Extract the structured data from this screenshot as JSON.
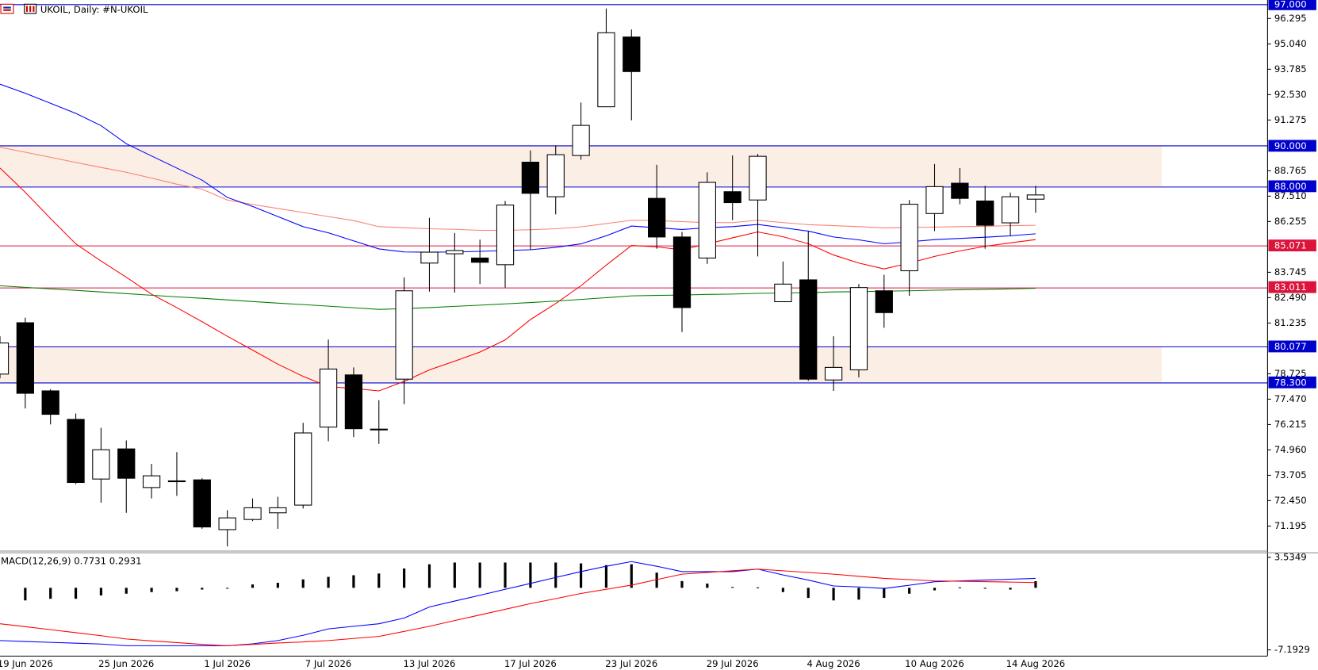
{
  "chart_data": [
    {
      "type": "candlestick",
      "title": "UKOIL, Daily:  #N-UKOIL",
      "categories": [
        null,
        "19 Jun 2026",
        null,
        null,
        null,
        "25 Jun 2026",
        null,
        null,
        null,
        "1 Jul 2026",
        null,
        null,
        null,
        "7 Jul 2026",
        null,
        null,
        null,
        "13 Jul 2026",
        null,
        null,
        null,
        "17 Jul 2026",
        null,
        null,
        null,
        "23 Jul 2026",
        null,
        null,
        null,
        "29 Jul 2026",
        null,
        null,
        null,
        "4 Aug 2026",
        null,
        null,
        null,
        "10 Aug 2026",
        null,
        null,
        null,
        "14 Aug 2026"
      ],
      "open": [
        78.71,
        81.25,
        77.88,
        76.47,
        73.52,
        75.01,
        73.1,
        73.43,
        73.48,
        71.02,
        71.52,
        71.85,
        72.23,
        76.09,
        78.67,
        75.99,
        78.46,
        84.2,
        84.66,
        84.45,
        84.12,
        89.19,
        87.48,
        89.52,
        91.93,
        95.38,
        87.4,
        85.49,
        84.45,
        87.73,
        87.32,
        82.29,
        83.37,
        78.42,
        78.92,
        82.83,
        83.82,
        86.65,
        88.15,
        87.27,
        86.19,
        87.36
      ],
      "high": [
        80.58,
        81.5,
        77.96,
        76.76,
        76.05,
        75.43,
        74.27,
        74.85,
        73.56,
        71.98,
        72.56,
        72.64,
        76.3,
        80.42,
        79.04,
        77.42,
        83.49,
        86.44,
        85.69,
        85.36,
        87.27,
        89.77,
        90.02,
        92.14,
        96.79,
        95.75,
        89.06,
        85.74,
        88.69,
        89.52,
        89.6,
        84.28,
        85.78,
        80.58,
        83.16,
        83.62,
        87.32,
        89.1,
        88.9,
        88.02,
        87.69,
        88.02
      ],
      "low": [
        78.5,
        77.01,
        76.22,
        73.27,
        72.35,
        71.85,
        72.56,
        72.69,
        71.06,
        70.19,
        71.44,
        71.06,
        72.06,
        75.39,
        75.6,
        75.26,
        77.22,
        82.79,
        82.74,
        83.16,
        82.99,
        84.86,
        86.61,
        89.31,
        91.93,
        91.26,
        84.91,
        80.79,
        84.16,
        86.32,
        84.53,
        82.29,
        78.38,
        77.88,
        78.55,
        81.0,
        82.58,
        85.78,
        87.11,
        84.91,
        85.53,
        86.69
      ],
      "close": [
        80.25,
        77.76,
        76.72,
        73.35,
        74.97,
        73.56,
        73.68,
        73.41,
        71.15,
        71.6,
        72.1,
        72.1,
        75.8,
        78.96,
        76.01,
        75.95,
        82.83,
        84.74,
        84.82,
        84.24,
        87.07,
        87.65,
        89.56,
        91.01,
        95.59,
        93.67,
        85.49,
        82.0,
        88.19,
        87.19,
        89.48,
        83.16,
        78.46,
        79.04,
        82.99,
        81.75,
        87.11,
        87.98,
        87.4,
        86.07,
        87.48,
        87.57
      ],
      "bull_color": "#ffffff",
      "bear_color": "#000000",
      "series": [
        {
          "color": "#fa8072",
          "values": [
            89.93,
            89.68,
            89.43,
            89.18,
            88.93,
            88.69,
            88.4,
            88.1,
            87.85,
            87.32,
            87.1,
            86.9,
            86.7,
            86.5,
            86.3,
            86.0,
            85.95,
            85.9,
            85.87,
            85.82,
            85.82,
            85.85,
            85.9,
            85.99,
            86.15,
            86.32,
            86.3,
            86.25,
            86.2,
            86.2,
            86.32,
            86.2,
            86.1,
            86.05,
            86.0,
            85.94,
            85.96,
            85.98,
            86.0,
            86.02,
            86.05,
            86.07
          ]
        },
        {
          "color": "#0000ff",
          "values": [
            93.05,
            92.6,
            92.1,
            91.6,
            91.0,
            90.1,
            89.5,
            88.9,
            88.3,
            87.45,
            87.0,
            86.5,
            86.0,
            85.7,
            85.3,
            84.9,
            84.75,
            84.74,
            84.75,
            84.78,
            84.82,
            84.86,
            84.98,
            85.15,
            85.55,
            86.03,
            85.95,
            85.86,
            85.95,
            86.0,
            86.11,
            85.95,
            85.78,
            85.49,
            85.35,
            85.16,
            85.25,
            85.36,
            85.42,
            85.48,
            85.55,
            85.65
          ]
        },
        {
          "color": "#ff0000",
          "values": [
            88.9,
            87.7,
            86.4,
            85.15,
            84.3,
            83.5,
            82.66,
            82.0,
            81.3,
            80.58,
            79.9,
            79.2,
            78.6,
            78.09,
            78.0,
            77.88,
            78.35,
            78.92,
            79.35,
            79.8,
            80.4,
            81.41,
            82.2,
            83.08,
            84.1,
            85.07,
            85.0,
            84.86,
            85.15,
            85.45,
            85.74,
            85.5,
            85.16,
            84.6,
            84.2,
            83.91,
            84.2,
            84.53,
            84.8,
            85.03,
            85.2,
            85.36
          ]
        },
        {
          "color": "#008000",
          "values": [
            83.08,
            83.0,
            82.92,
            82.85,
            82.77,
            82.69,
            82.61,
            82.53,
            82.46,
            82.38,
            82.3,
            82.22,
            82.15,
            82.07,
            81.99,
            81.91,
            81.95,
            82.0,
            82.06,
            82.12,
            82.18,
            82.25,
            82.32,
            82.4,
            82.49,
            82.58,
            82.6,
            82.62,
            82.65,
            82.67,
            82.7,
            82.72,
            82.74,
            82.77,
            82.79,
            82.81,
            82.83,
            82.86,
            82.88,
            82.9,
            82.92,
            82.95
          ]
        }
      ],
      "levels": [
        {
          "value": 97,
          "label": "97.000",
          "color": "#0000cd"
        },
        {
          "value": 90,
          "label": "90.000",
          "color": "#0000cd"
        },
        {
          "value": 88,
          "label": "88.000",
          "color": "#0000cd"
        },
        {
          "value": 85.071,
          "label": "85.071",
          "color": "#dc143c"
        },
        {
          "value": 83.011,
          "label": "83.011",
          "color": "#dc143c"
        },
        {
          "value": 80.077,
          "label": "80.077",
          "color": "#0000cd"
        },
        {
          "value": 78.3,
          "label": "78.300",
          "color": "#0000cd"
        }
      ],
      "zones": [
        [
          88,
          90
        ],
        [
          78.3,
          80.077
        ]
      ],
      "zone_color": "#fbeee4",
      "ylim": [
        69.98,
        97.21
      ],
      "yticks": [
        96.295,
        {
          "value": 95.04,
          "label": "95.040"
        },
        93.785,
        {
          "value": 92.53,
          "label": "92.530"
        },
        91.275,
        88.765,
        {
          "value": 87.51,
          "label": "87.510"
        },
        86.255,
        83.745,
        {
          "value": 82.49,
          "label": "82.490"
        },
        81.235,
        78.725,
        {
          "value": 77.47,
          "label": "77.470"
        },
        76.215,
        {
          "value": 74.96,
          "label": "74.960"
        },
        73.705,
        {
          "value": 72.45,
          "label": "72.450"
        },
        71.195
      ]
    },
    {
      "type": "macd",
      "title": "MACD(12,26,9) 0.7731 0.2931",
      "values": [
        null,
        -1.46,
        -1.27,
        -1.27,
        -0.88,
        -0.68,
        -0.49,
        -0.39,
        -0.2,
        -0.05,
        0.39,
        0.58,
        0.98,
        1.27,
        1.46,
        1.66,
        2.24,
        2.73,
        2.93,
        2.93,
        2.93,
        2.93,
        2.93,
        2.83,
        2.63,
        2.73,
        1.76,
        0.78,
        0.49,
        0.1,
        0.05,
        -0.49,
        -1.17,
        -1.46,
        -1.37,
        -1.17,
        -0.68,
        -0.29,
        0.05,
        -0.1,
        -0.2,
        0.77
      ],
      "color": "#000000",
      "series": [
        {
          "color": "#0000ff",
          "values": [
            -6.12,
            -6.22,
            -6.32,
            -6.42,
            -6.52,
            -6.71,
            -6.71,
            -6.71,
            -6.71,
            -6.71,
            -6.5,
            -6.12,
            -5.5,
            -4.76,
            -4.46,
            -4.17,
            -3.5,
            -2.22,
            -1.54,
            -0.86,
            -0.17,
            0.51,
            1.2,
            1.88,
            2.5,
            3.05,
            2.5,
            1.88,
            1.88,
            1.88,
            2.17,
            1.5,
            0.9,
            0.22,
            0.1,
            -0.07,
            0.3,
            0.71,
            0.8,
            0.9,
            1.0,
            1.1
          ]
        },
        {
          "color": "#ff0000",
          "values": [
            -4.17,
            -4.5,
            -4.85,
            -5.2,
            -5.55,
            -5.93,
            -6.15,
            -6.35,
            -6.55,
            -6.71,
            -6.55,
            -6.4,
            -6.27,
            -6.12,
            -5.87,
            -5.63,
            -5.05,
            -4.46,
            -3.8,
            -3.14,
            -2.49,
            -1.83,
            -1.25,
            -0.66,
            -0.17,
            0.32,
            0.95,
            1.58,
            1.78,
            1.98,
            2.17,
            1.97,
            1.78,
            1.58,
            1.34,
            1.1,
            0.95,
            0.8,
            0.76,
            0.72,
            0.67,
            0.61
          ]
        }
      ],
      "ylim": [
        -7.87,
        4.02
      ],
      "yticks": [
        3.5349,
        -7.1929
      ]
    }
  ]
}
